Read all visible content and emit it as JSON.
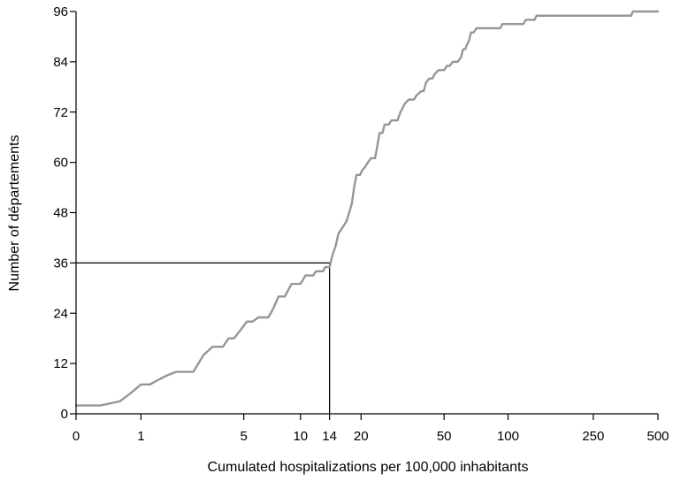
{
  "chart_data": {
    "type": "line",
    "xlabel": "Cumulated hospitalizations per 100,000 inhabitants",
    "ylabel": "Number of départements",
    "x_scale": "log1p",
    "xlim": [
      0,
      500
    ],
    "ylim": [
      0,
      96
    ],
    "x_ticks": [
      {
        "value": 0,
        "label": "0"
      },
      {
        "value": 1,
        "label": "1"
      },
      {
        "value": 5,
        "label": "5"
      },
      {
        "value": 10,
        "label": "10"
      },
      {
        "value": 14,
        "label": "14"
      },
      {
        "value": 20,
        "label": "20"
      },
      {
        "value": 50,
        "label": "50"
      },
      {
        "value": 100,
        "label": "100"
      },
      {
        "value": 250,
        "label": "250"
      },
      {
        "value": 500,
        "label": "500"
      }
    ],
    "y_ticks": [
      {
        "value": 0,
        "label": "0"
      },
      {
        "value": 12,
        "label": "12"
      },
      {
        "value": 24,
        "label": "24"
      },
      {
        "value": 36,
        "label": "36"
      },
      {
        "value": 48,
        "label": "48"
      },
      {
        "value": 60,
        "label": "60"
      },
      {
        "value": 72,
        "label": "72"
      },
      {
        "value": 84,
        "label": "84"
      },
      {
        "value": 96,
        "label": "96"
      }
    ],
    "grid": false,
    "legend": "none",
    "series": [
      {
        "color": "#969696",
        "points": [
          [
            0,
            2
          ],
          [
            0.3,
            2
          ],
          [
            0.6,
            3
          ],
          [
            0.8,
            5
          ],
          [
            1.0,
            7
          ],
          [
            1.2,
            7
          ],
          [
            1.6,
            9
          ],
          [
            1.9,
            10
          ],
          [
            2.5,
            10
          ],
          [
            2.9,
            14
          ],
          [
            3.3,
            16
          ],
          [
            3.8,
            16
          ],
          [
            4.1,
            18
          ],
          [
            4.4,
            18
          ],
          [
            4.8,
            20
          ],
          [
            5.2,
            22
          ],
          [
            5.6,
            22
          ],
          [
            6.0,
            23
          ],
          [
            6.8,
            23
          ],
          [
            7.2,
            25
          ],
          [
            7.7,
            28
          ],
          [
            8.3,
            28
          ],
          [
            9.0,
            31
          ],
          [
            10.0,
            31
          ],
          [
            10.6,
            33
          ],
          [
            11.6,
            33
          ],
          [
            12.0,
            34
          ],
          [
            13.0,
            34
          ],
          [
            13.3,
            35
          ],
          [
            14.0,
            35
          ],
          [
            14.5,
            38
          ],
          [
            15.0,
            40
          ],
          [
            15.5,
            43
          ],
          [
            16.0,
            44
          ],
          [
            16.5,
            45
          ],
          [
            17.0,
            46
          ],
          [
            17.5,
            48
          ],
          [
            18.0,
            50
          ],
          [
            18.5,
            54
          ],
          [
            19.0,
            57
          ],
          [
            19.8,
            57
          ],
          [
            20.2,
            58
          ],
          [
            21.0,
            59
          ],
          [
            21.6,
            60
          ],
          [
            22.4,
            61
          ],
          [
            23.4,
            61
          ],
          [
            24.0,
            64
          ],
          [
            24.6,
            67
          ],
          [
            25.4,
            67
          ],
          [
            26.0,
            69
          ],
          [
            27.2,
            69
          ],
          [
            28.0,
            70
          ],
          [
            30.0,
            70
          ],
          [
            31.0,
            72
          ],
          [
            32.5,
            74
          ],
          [
            34.0,
            75
          ],
          [
            36.0,
            75
          ],
          [
            37.0,
            76
          ],
          [
            39.0,
            77
          ],
          [
            40.0,
            77
          ],
          [
            41.0,
            79
          ],
          [
            42.5,
            80
          ],
          [
            44.0,
            80
          ],
          [
            45.0,
            81
          ],
          [
            47.0,
            82
          ],
          [
            50.0,
            82
          ],
          [
            51.5,
            83
          ],
          [
            53.0,
            83
          ],
          [
            55.0,
            84
          ],
          [
            58.0,
            84
          ],
          [
            60.0,
            85
          ],
          [
            61.5,
            87
          ],
          [
            63.0,
            87
          ],
          [
            64.0,
            88
          ],
          [
            65.5,
            89
          ],
          [
            67.0,
            91
          ],
          [
            69.0,
            91
          ],
          [
            71.0,
            92
          ],
          [
            92.0,
            92
          ],
          [
            94.0,
            93
          ],
          [
            118.0,
            93
          ],
          [
            121.0,
            94
          ],
          [
            133.0,
            94
          ],
          [
            136.0,
            95
          ],
          [
            375.0,
            95
          ],
          [
            382.0,
            96
          ],
          [
            500.0,
            96
          ]
        ]
      }
    ],
    "reference_lines": {
      "color": "#000000",
      "x": 14,
      "y": 36
    }
  }
}
